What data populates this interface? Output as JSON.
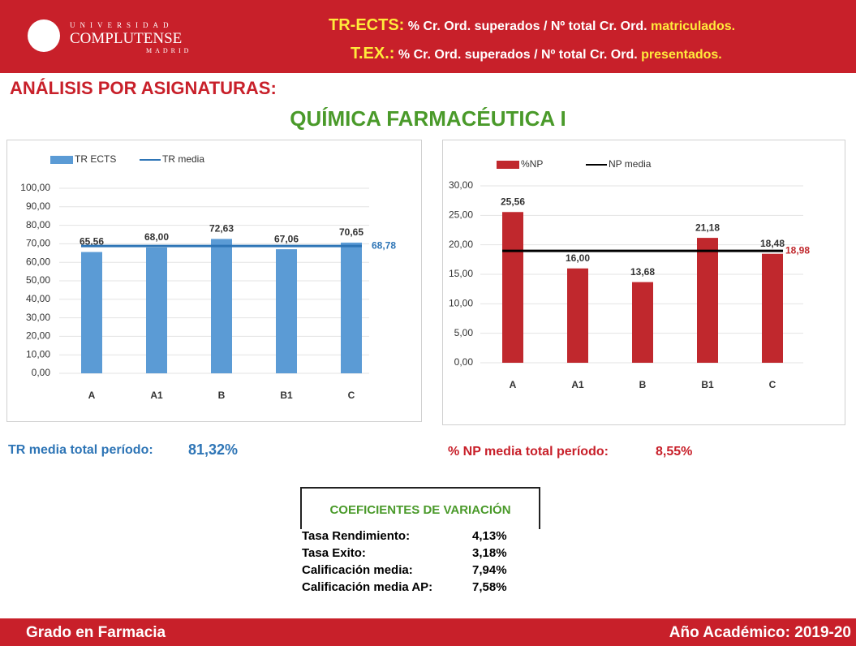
{
  "header": {
    "logo": [
      "UNIVERSIDAD",
      "COMPLUTENSE",
      "MADRID"
    ],
    "line1": {
      "key": "TR-ECTS:",
      "text": "% Cr. Ord. superados / Nº total Cr. Ord.",
      "em": "matriculados."
    },
    "line2": {
      "key": "T.EX.:",
      "text": "% Cr. Ord. superados / Nº total Cr. Ord.",
      "em": "presentados."
    }
  },
  "section_title": "ANÁLISIS POR ASIGNATURAS:",
  "subject": "QUÍMICA FARMACÉUTICA I",
  "chart_data": [
    {
      "type": "bar",
      "categories": [
        "A",
        "A1",
        "B",
        "B1",
        "C"
      ],
      "series": [
        {
          "name": "TR ECTS",
          "color": "#5b9bd5",
          "values": [
            65.56,
            68,
            72.63,
            67.06,
            70.65
          ],
          "value_labels": [
            "65,56",
            "68,00",
            "72,63",
            "67,06",
            "70,65"
          ]
        }
      ],
      "reference_line": {
        "name": "TR media",
        "value": 68.78,
        "label": "68,78",
        "color": "#2e75b6"
      },
      "ylim": [
        0,
        100
      ],
      "yticks": [
        {
          "value": 0,
          "label": "0,00"
        },
        {
          "value": 10,
          "label": "10,00"
        },
        {
          "value": 20,
          "label": "20,00"
        },
        {
          "value": 30,
          "label": "30,00"
        },
        {
          "value": 40,
          "label": "40,00"
        },
        {
          "value": 50,
          "label": "50,00"
        },
        {
          "value": 60,
          "label": "60,00"
        },
        {
          "value": 70,
          "label": "70,00"
        },
        {
          "value": 80,
          "label": "80,00"
        },
        {
          "value": 90,
          "label": "90,00"
        },
        {
          "value": 100,
          "label": "100,00"
        }
      ],
      "grid": true
    },
    {
      "type": "bar",
      "categories": [
        "A",
        "A1",
        "B",
        "B1",
        "C"
      ],
      "series": [
        {
          "name": "%NP",
          "color": "#c0282d",
          "values": [
            25.56,
            16,
            13.68,
            21.18,
            18.48
          ],
          "value_labels": [
            "25,56",
            "16,00",
            "13,68",
            "21,18",
            "18,48"
          ]
        }
      ],
      "reference_line": {
        "name": "NP media",
        "value": 18.98,
        "label": "18,98",
        "color": "#000000"
      },
      "ylim": [
        0,
        30
      ],
      "yticks": [
        {
          "value": 0,
          "label": "0,00"
        },
        {
          "value": 5,
          "label": "5,00"
        },
        {
          "value": 10,
          "label": "10,00"
        },
        {
          "value": 15,
          "label": "15,00"
        },
        {
          "value": 20,
          "label": "20,00"
        },
        {
          "value": 25,
          "label": "25,00"
        },
        {
          "value": 30,
          "label": "30,00"
        }
      ],
      "grid": true
    }
  ],
  "summary": {
    "tr": {
      "label": "TR media total período:",
      "value": "81,32%"
    },
    "np": {
      "label": "% NP media total período:",
      "value": "8,55%"
    }
  },
  "table": {
    "title": "COEFICIENTES DE VARIACIÓN",
    "rows": [
      [
        "Tasa Rendimiento:",
        "4,13%"
      ],
      [
        "Tasa Exito:",
        "3,18%"
      ],
      [
        "Calificación media:",
        "7,94%"
      ],
      [
        "Calificación media AP:",
        "7,58%"
      ]
    ]
  },
  "footer": {
    "left": "Grado en Farmacia",
    "right": "Año Académico: 2019-20"
  }
}
